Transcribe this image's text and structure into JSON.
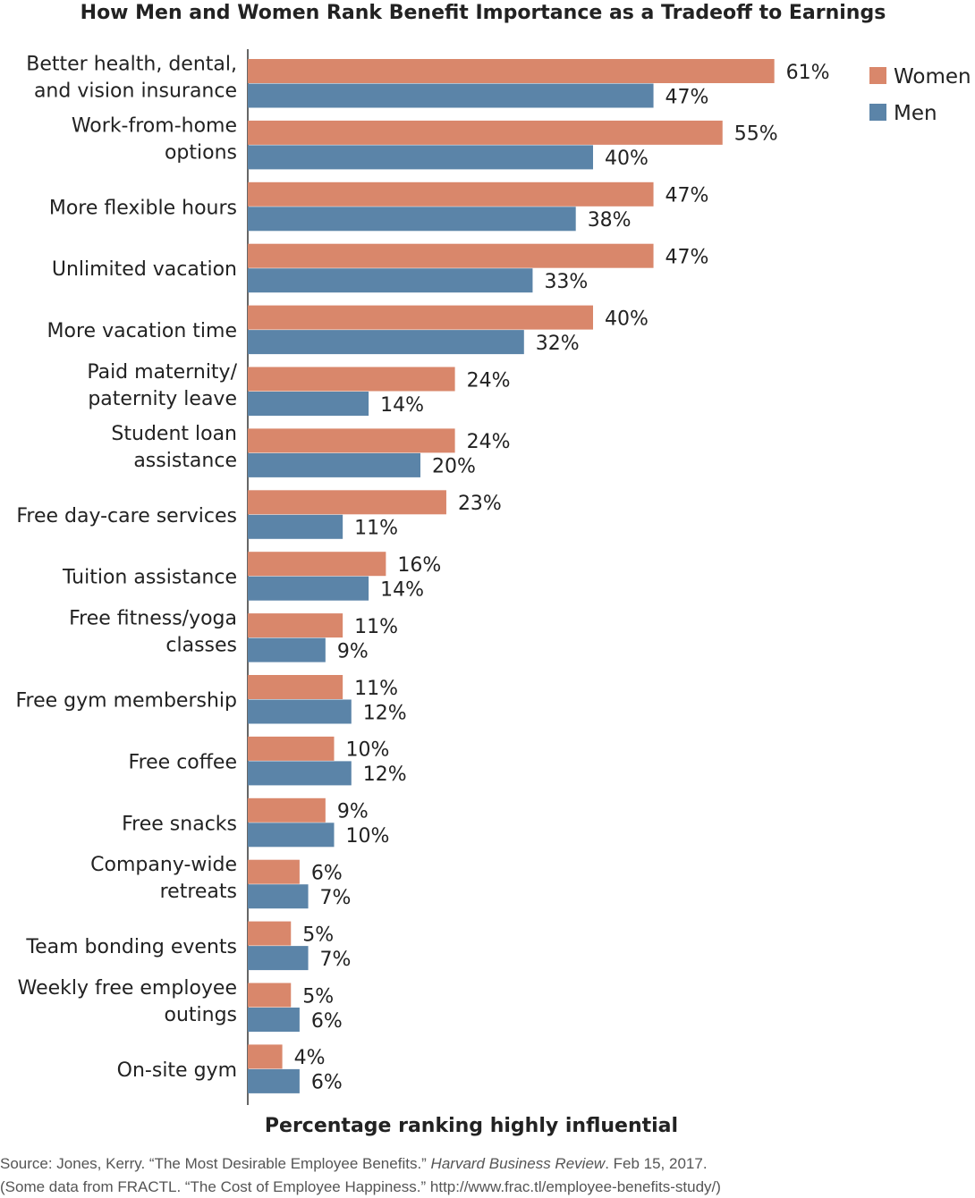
{
  "chart_data": {
    "type": "bar",
    "orientation": "horizontal",
    "title": "How Men and Women Rank Benefit Importance as a Tradeoff to Earnings",
    "xlabel": "Percentage ranking highly influential",
    "ylabel": "",
    "xlim": [
      0,
      65
    ],
    "grid": false,
    "legend_position": "top-right",
    "value_suffix": "%",
    "categories": [
      [
        "Better health, dental,",
        "and vision insurance"
      ],
      [
        "Work-from-home",
        "options"
      ],
      [
        "More flexible hours"
      ],
      [
        "Unlimited vacation"
      ],
      [
        "More vacation time"
      ],
      [
        "Paid maternity/",
        "paternity leave"
      ],
      [
        "Student loan",
        "assistance"
      ],
      [
        "Free day-care services"
      ],
      [
        "Tuition assistance"
      ],
      [
        "Free fitness/yoga",
        "classes"
      ],
      [
        "Free gym membership"
      ],
      [
        "Free coffee"
      ],
      [
        "Free snacks"
      ],
      [
        "Company-wide",
        "retreats"
      ],
      [
        "Team bonding events"
      ],
      [
        "Weekly free employee",
        "outings"
      ],
      [
        "On-site gym"
      ]
    ],
    "series": [
      {
        "name": "Women",
        "color": "#d9876b",
        "values": [
          61,
          55,
          47,
          47,
          40,
          24,
          24,
          23,
          16,
          11,
          11,
          10,
          9,
          6,
          5,
          5,
          4
        ]
      },
      {
        "name": "Men",
        "color": "#5b84a8",
        "values": [
          47,
          40,
          38,
          33,
          32,
          14,
          20,
          11,
          14,
          9,
          12,
          12,
          10,
          7,
          7,
          6,
          6
        ]
      }
    ]
  },
  "source": {
    "line1_prefix": "Source: Jones, Kerry. “The Most Desirable Employee Benefits.” ",
    "line1_italic": "Harvard Business Review",
    "line1_suffix": ". Feb 15, 2017.",
    "line2": "(Some data from FRACTL. “The Cost of Employee Happiness.” http://www.frac.tl/employee-benefits-study/)"
  }
}
